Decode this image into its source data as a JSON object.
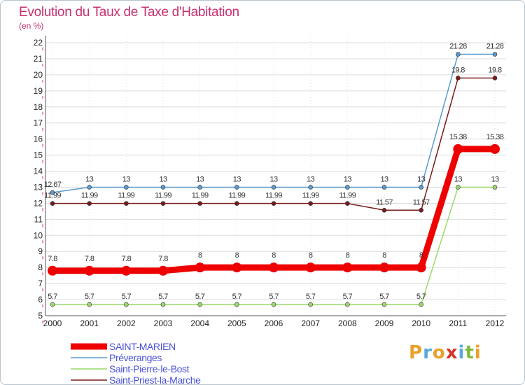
{
  "header": {
    "title": "Evolution du Taux de Taxe d'Habitation",
    "subtitle": "(en %)"
  },
  "logo": {
    "letters": [
      "P",
      "r",
      "o",
      "x",
      "i",
      "t",
      "i"
    ],
    "colors": [
      "#e8a12b",
      "#5aa8dc",
      "#e8a12b",
      "#d9342b",
      "#5aa8dc",
      "#7dbb3c",
      "#e8a12b"
    ]
  },
  "chart_data": {
    "type": "line",
    "title": "Evolution du Taux de Taxe d'Habitation",
    "ylabel": "(en %)",
    "xlabel": "",
    "x": [
      "2000",
      "2001",
      "2002",
      "2003",
      "2004",
      "2005",
      "2006",
      "2007",
      "2008",
      "2009",
      "2010",
      "2011",
      "2012"
    ],
    "ylim": [
      5,
      22
    ],
    "yticks": [
      5,
      6,
      7,
      8,
      9,
      10,
      11,
      12,
      13,
      14,
      15,
      16,
      17,
      18,
      19,
      20,
      21,
      22
    ],
    "grid": "horizontal",
    "legend_position": "bottom-left",
    "series": [
      {
        "name": "Préveranges",
        "color": "#5a9bd0",
        "values": [
          12.67,
          13,
          13,
          13,
          13,
          13,
          13,
          13,
          13,
          13,
          13,
          21.28,
          21.28
        ],
        "labels": [
          "12.67",
          "13",
          "13",
          "13",
          "13",
          "13",
          "13",
          "13",
          "13",
          "13",
          "13",
          "21.28",
          "21.28"
        ]
      },
      {
        "name": "Saint-Priest-la-Marche",
        "color": "#7a1a1a",
        "values": [
          11.99,
          11.99,
          11.99,
          11.99,
          11.99,
          11.99,
          11.99,
          11.99,
          11.99,
          11.57,
          11.57,
          19.8,
          19.8
        ],
        "labels": [
          "11.99",
          "11.99",
          "11.99",
          "11.99",
          "11.99",
          "11.99",
          "11.99",
          "11.99",
          "11.99",
          "11.57",
          "11.57",
          "19.8",
          "19.8"
        ]
      },
      {
        "name": "Saint-Pierre-le-Bost",
        "color": "#9ad86a",
        "values": [
          5.7,
          5.7,
          5.7,
          5.7,
          5.7,
          5.7,
          5.7,
          5.7,
          5.7,
          5.7,
          5.7,
          13,
          13
        ],
        "labels": [
          "5.7",
          "5.7",
          "5.7",
          "5.7",
          "5.7",
          "5.7",
          "5.7",
          "5.7",
          "5.7",
          "5.7",
          "5.7",
          "13",
          "13"
        ]
      },
      {
        "name": "SAINT-MARIEN",
        "color": "#ee0000",
        "values": [
          7.8,
          7.8,
          7.8,
          7.8,
          8,
          8,
          8,
          8,
          8,
          8,
          8,
          15.38,
          15.38
        ],
        "labels": [
          "7.8",
          "7.8",
          "7.8",
          "7.8",
          "8",
          "8",
          "8",
          "8",
          "8",
          "8",
          "8",
          "15.38",
          "15.38"
        ]
      }
    ],
    "legend": [
      "SAINT-MARIEN",
      "Préveranges",
      "Saint-Pierre-le-Bost",
      "Saint-Priest-la-Marche"
    ]
  }
}
